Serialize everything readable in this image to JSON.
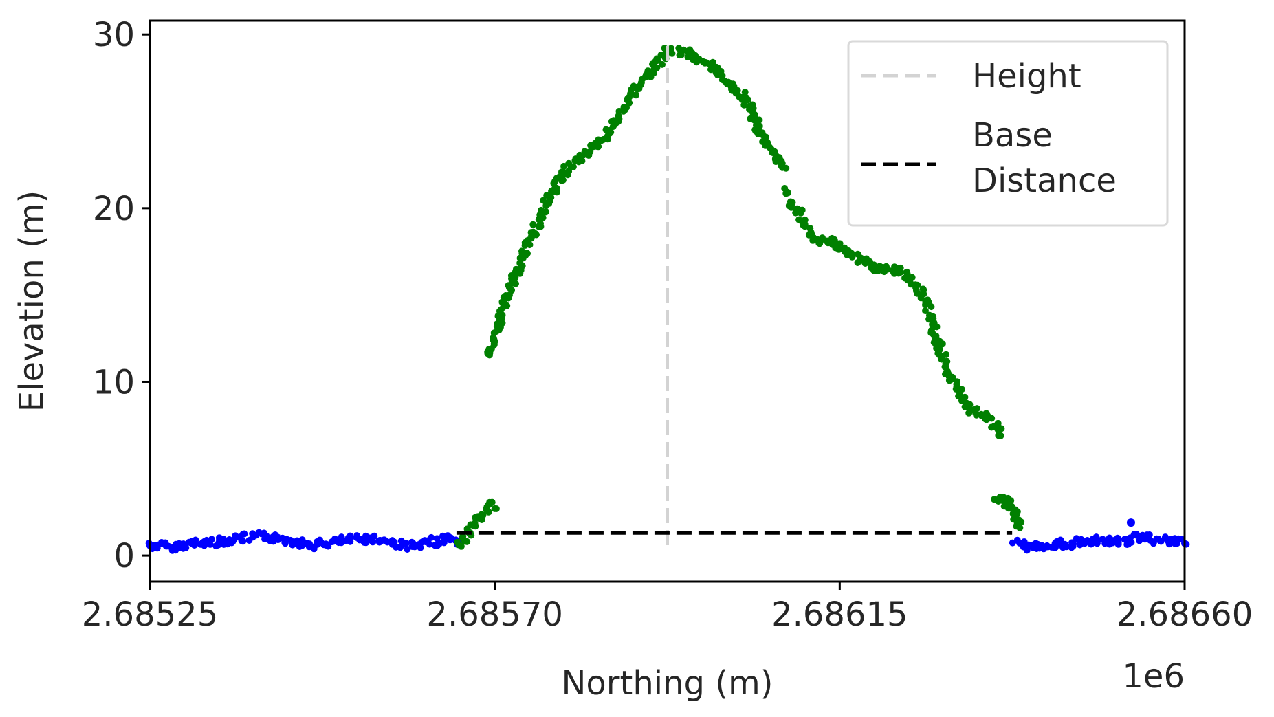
{
  "chart_data": {
    "type": "scatter",
    "xlabel": "Northing (m)",
    "ylabel": "Elevation (m)",
    "x_offset_label": "1e6",
    "xlim": [
      2685250,
      2686600
    ],
    "ylim": [
      -1.5,
      30.8
    ],
    "x_ticks": [
      {
        "value": 2685250,
        "label": "2.68525"
      },
      {
        "value": 2685700,
        "label": "2.68570"
      },
      {
        "value": 2686150,
        "label": "2.68615"
      },
      {
        "value": 2686600,
        "label": "2.68660"
      }
    ],
    "y_ticks": [
      {
        "value": 0,
        "label": "0"
      },
      {
        "value": 10,
        "label": "10"
      },
      {
        "value": 20,
        "label": "20"
      },
      {
        "value": 30,
        "label": "30"
      }
    ],
    "grid": false,
    "legend": {
      "placement": "upper right",
      "entries": [
        {
          "label": "Height",
          "style": "dashed",
          "color": "#d3d3d3"
        },
        {
          "label": "Base\nDistance",
          "style": "dashed",
          "color": "#000000"
        }
      ]
    },
    "lines": [
      {
        "name": "Height",
        "color": "#d3d3d3",
        "dash": true,
        "x": [
          2685925,
          2685925
        ],
        "y": [
          0.6,
          29.4
        ]
      },
      {
        "name": "Base Distance",
        "color": "#000000",
        "dash": true,
        "x": [
          2685650,
          2686375
        ],
        "y": [
          1.3,
          1.3
        ]
      }
    ],
    "series": [
      {
        "color": "#0000ff",
        "x": [
          2685250,
          2685280,
          2685310,
          2685340,
          2685370,
          2685400,
          2685430,
          2685460,
          2685480,
          2685510,
          2685540,
          2685570,
          2685600,
          2685620,
          2685640,
          2685655
        ],
        "y": [
          0.6,
          0.5,
          0.7,
          0.8,
          1.0,
          1.1,
          0.9,
          0.6,
          0.7,
          0.9,
          1.0,
          0.7,
          0.5,
          0.8,
          1.0,
          0.8
        ]
      },
      {
        "color": "#0000ff",
        "x": [
          2686380,
          2686400,
          2686420,
          2686450,
          2686480,
          2686510,
          2686540,
          2686570,
          2686600
        ],
        "y": [
          0.7,
          0.4,
          0.6,
          0.7,
          0.9,
          0.8,
          1.0,
          0.9,
          0.7
        ]
      },
      {
        "color": "#0000ff",
        "x": [
          2686530
        ],
        "y": [
          1.9
        ]
      },
      {
        "color": "#008000",
        "x": [
          2685655,
          2685665,
          2685675,
          2685685,
          2685695,
          2685700
        ],
        "y": [
          0.6,
          1.2,
          1.9,
          2.5,
          2.9,
          2.7
        ]
      },
      {
        "color": "#008000",
        "x": [
          2685690,
          2685700,
          2685710,
          2685725,
          2685740,
          2685755,
          2685770,
          2685785,
          2685800,
          2685815,
          2685830,
          2685845,
          2685860,
          2685875,
          2685890,
          2685905,
          2685920,
          2685930
        ],
        "y": [
          11.5,
          12.5,
          14.0,
          16.0,
          17.5,
          19.0,
          20.5,
          21.8,
          22.5,
          23.0,
          23.5,
          24.2,
          25.2,
          26.3,
          27.2,
          28.0,
          28.8,
          29.2
        ]
      },
      {
        "color": "#008000",
        "x": [
          2685935,
          2685950,
          2685965,
          2685980,
          2685995,
          2686010,
          2686025,
          2686040,
          2686055,
          2686070,
          2686080
        ],
        "y": [
          29.1,
          28.9,
          28.6,
          28.3,
          27.8,
          27.0,
          26.5,
          25.0,
          23.5,
          22.8,
          22.3
        ]
      },
      {
        "color": "#008000",
        "x": [
          2686080,
          2686090,
          2686100,
          2686110,
          2686125,
          2686140,
          2686155,
          2686170,
          2686185,
          2686200,
          2686215,
          2686230,
          2686245,
          2686260,
          2686270,
          2686280,
          2686290,
          2686300,
          2686310,
          2686320,
          2686330,
          2686340,
          2686350,
          2686360
        ],
        "y": [
          21.0,
          20.2,
          19.5,
          18.5,
          18.0,
          18.2,
          17.6,
          17.2,
          16.8,
          16.5,
          16.4,
          16.5,
          15.7,
          15.0,
          13.5,
          12.0,
          10.5,
          9.8,
          9.0,
          8.5,
          8.2,
          8.1,
          7.6,
          6.9
        ]
      },
      {
        "color": "#008000",
        "x": [
          2686355,
          2686365,
          2686375,
          2686385
        ],
        "y": [
          3.3,
          3.2,
          2.6,
          1.6
        ]
      }
    ]
  }
}
